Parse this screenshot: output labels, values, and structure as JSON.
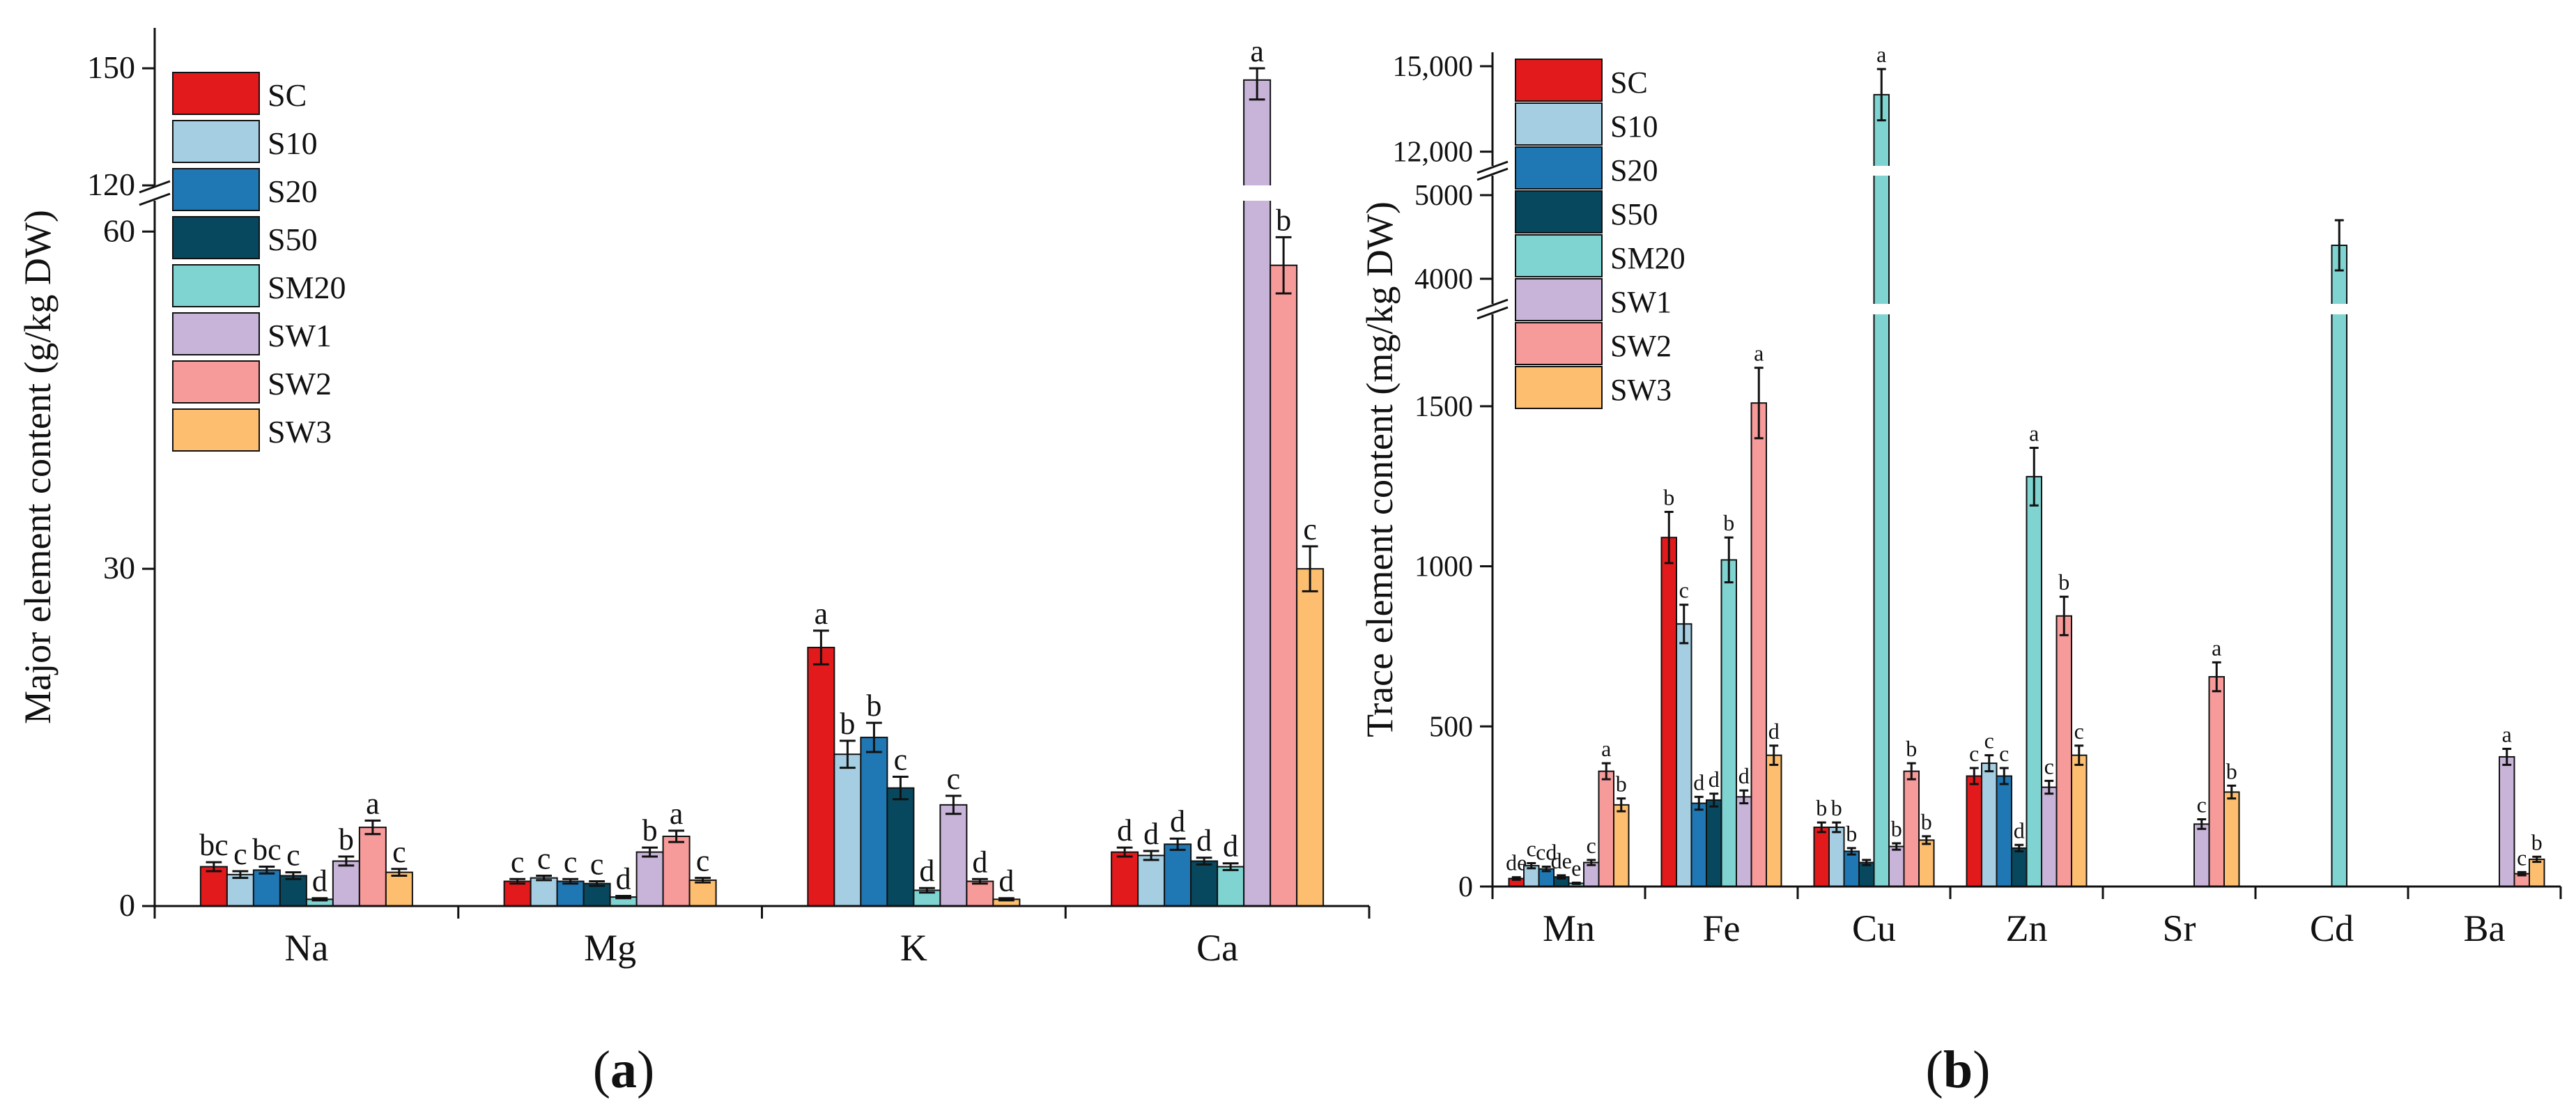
{
  "panels": [
    {
      "label_open": "(",
      "label_letter": "a",
      "label_close": ")"
    },
    {
      "label_open": "(",
      "label_letter": "b",
      "label_close": ")"
    }
  ],
  "colors": {
    "SC": "#e31a1c",
    "S10": "#a6cee3",
    "S20": "#1f78b4",
    "S50": "#08485e",
    "SM20": "#7fd3d1",
    "SW1": "#c8b4d9",
    "SW2": "#f79a9a",
    "SW3": "#fdbf6f"
  },
  "chart_data": [
    {
      "type": "bar",
      "title": "",
      "xlabel": "",
      "ylabel": "Major element content (g/kg DW)",
      "categories": [
        "Na",
        "Mg",
        "K",
        "Ca"
      ],
      "ylim": [
        0,
        150
      ],
      "axis_break": {
        "lower_max": 62,
        "upper_min": 120,
        "upper_max": 150
      },
      "yticks": [
        {
          "value": 0,
          "label": "0"
        },
        {
          "value": 30,
          "label": "30"
        },
        {
          "value": 60,
          "label": "60"
        },
        {
          "value": 120,
          "label": "120"
        },
        {
          "value": 150,
          "label": "150"
        }
      ],
      "legend": [
        "SC",
        "S10",
        "S20",
        "S50",
        "SM20",
        "SW1",
        "SW2",
        "SW3"
      ],
      "series": [
        {
          "name": "SC",
          "values": [
            3.5,
            2.2,
            23.0,
            4.8
          ],
          "errors": [
            0.4,
            0.2,
            1.5,
            0.4
          ],
          "letters": [
            "bc",
            "c",
            "a",
            "d"
          ]
        },
        {
          "name": "S10",
          "values": [
            2.8,
            2.5,
            13.5,
            4.5
          ],
          "errors": [
            0.3,
            0.2,
            1.2,
            0.4
          ],
          "letters": [
            "c",
            "c",
            "b",
            "d"
          ]
        },
        {
          "name": "S20",
          "values": [
            3.2,
            2.2,
            15.0,
            5.5
          ],
          "errors": [
            0.3,
            0.2,
            1.3,
            0.5
          ],
          "letters": [
            "bc",
            "c",
            "b",
            "d"
          ]
        },
        {
          "name": "S50",
          "values": [
            2.7,
            2.0,
            10.5,
            4.0
          ],
          "errors": [
            0.3,
            0.2,
            1.0,
            0.3
          ],
          "letters": [
            "c",
            "c",
            "c",
            "d"
          ]
        },
        {
          "name": "SM20",
          "values": [
            0.6,
            0.8,
            1.4,
            3.5
          ],
          "errors": [
            0.1,
            0.1,
            0.2,
            0.3
          ],
          "letters": [
            "d",
            "d",
            "d",
            "d"
          ]
        },
        {
          "name": "SW1",
          "values": [
            4.0,
            4.8,
            9.0,
            147.0
          ],
          "errors": [
            0.4,
            0.4,
            0.8,
            5.0
          ],
          "letters": [
            "b",
            "b",
            "c",
            "a"
          ]
        },
        {
          "name": "SW2",
          "values": [
            7.0,
            6.2,
            2.2,
            57.0
          ],
          "errors": [
            0.6,
            0.5,
            0.2,
            2.5
          ],
          "letters": [
            "a",
            "a",
            "d",
            "b"
          ]
        },
        {
          "name": "SW3",
          "values": [
            3.0,
            2.3,
            0.6,
            30.0
          ],
          "errors": [
            0.3,
            0.2,
            0.1,
            2.0
          ],
          "letters": [
            "c",
            "c",
            "d",
            "c"
          ]
        }
      ]
    },
    {
      "type": "bar",
      "title": "",
      "xlabel": "",
      "ylabel": "Trace element content (mg/kg DW)",
      "categories": [
        "Mn",
        "Fe",
        "Cu",
        "Zn",
        "Sr",
        "Cd",
        "Ba"
      ],
      "ylim": [
        0,
        15000
      ],
      "axis_breaks": [
        {
          "from": 1800,
          "to": 3700
        },
        {
          "from": 5250,
          "to": 11500
        }
      ],
      "yticks": [
        {
          "value": 0,
          "label": "0"
        },
        {
          "value": 500,
          "label": "500"
        },
        {
          "value": 1000,
          "label": "1000"
        },
        {
          "value": 1500,
          "label": "1500"
        },
        {
          "value": 4000,
          "label": "4000"
        },
        {
          "value": 5000,
          "label": "5000"
        },
        {
          "value": 12000,
          "label": "12,000"
        },
        {
          "value": 15000,
          "label": "15,000"
        }
      ],
      "legend": [
        "SC",
        "S10",
        "S20",
        "S50",
        "SM20",
        "SW1",
        "SW2",
        "SW3"
      ],
      "series": [
        {
          "name": "SC",
          "values": [
            25,
            1090,
            185,
            345,
            0,
            0,
            0
          ],
          "errors": [
            4,
            80,
            15,
            25,
            0,
            0,
            0
          ],
          "letters": [
            "de",
            "b",
            "b",
            "c",
            "",
            "",
            ""
          ]
        },
        {
          "name": "S10",
          "values": [
            65,
            820,
            185,
            385,
            0,
            0,
            0
          ],
          "errors": [
            8,
            60,
            15,
            25,
            0,
            0,
            0
          ],
          "letters": [
            "c",
            "c",
            "b",
            "c",
            "",
            "",
            ""
          ]
        },
        {
          "name": "S20",
          "values": [
            55,
            260,
            110,
            345,
            0,
            0,
            0
          ],
          "errors": [
            7,
            20,
            10,
            25,
            0,
            0,
            0
          ],
          "letters": [
            "cd",
            "d",
            "b",
            "c",
            "",
            "",
            ""
          ]
        },
        {
          "name": "S50",
          "values": [
            30,
            270,
            75,
            120,
            0,
            0,
            0
          ],
          "errors": [
            5,
            20,
            8,
            10,
            0,
            0,
            0
          ],
          "letters": [
            "de",
            "d",
            "",
            "d",
            "",
            "",
            ""
          ]
        },
        {
          "name": "SM20",
          "values": [
            10,
            1020,
            14000,
            1280,
            0,
            4400,
            0
          ],
          "errors": [
            2,
            70,
            900,
            90,
            0,
            300,
            0
          ],
          "letters": [
            "e",
            "b",
            "a",
            "a",
            "",
            "",
            ""
          ]
        },
        {
          "name": "SW1",
          "values": [
            75,
            280,
            125,
            310,
            195,
            0,
            405
          ],
          "errors": [
            8,
            20,
            10,
            20,
            15,
            0,
            25
          ],
          "letters": [
            "c",
            "d",
            "b",
            "c",
            "c",
            "",
            "a"
          ]
        },
        {
          "name": "SW2",
          "values": [
            360,
            1510,
            360,
            845,
            655,
            0,
            40
          ],
          "errors": [
            25,
            110,
            25,
            60,
            45,
            0,
            5
          ],
          "letters": [
            "a",
            "a",
            "b",
            "b",
            "a",
            "",
            "c"
          ]
        },
        {
          "name": "SW3",
          "values": [
            255,
            410,
            145,
            410,
            295,
            0,
            85
          ],
          "errors": [
            20,
            30,
            12,
            30,
            20,
            0,
            8
          ],
          "letters": [
            "b",
            "d",
            "b",
            "c",
            "b",
            "",
            "b"
          ]
        }
      ]
    }
  ]
}
